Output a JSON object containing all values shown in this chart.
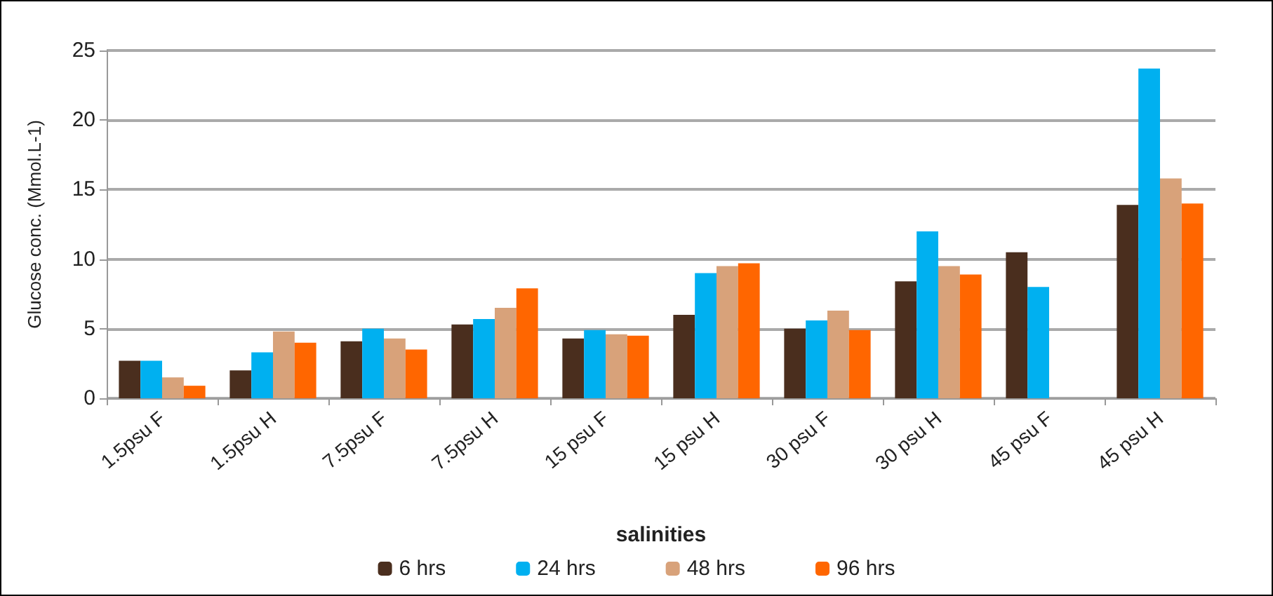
{
  "chart_data": {
    "type": "bar",
    "xlabel": "salinities",
    "ylabel": "Glucose conc. (Mmol.L-1)",
    "categories": [
      "1.5psu F",
      "1.5psu H",
      "7.5psu F",
      "7.5psu H",
      "15 psu F",
      "15 psu H",
      "30 psu F",
      "30 psu H",
      "45 psu F",
      "45 psu H"
    ],
    "series": [
      {
        "name": "6 hrs",
        "color": "#4a2e1e",
        "values": [
          2.7,
          2.0,
          4.1,
          5.3,
          4.3,
          6.0,
          5.0,
          8.4,
          10.5,
          13.9
        ]
      },
      {
        "name": "24 hrs",
        "color": "#00b0f0",
        "values": [
          2.7,
          3.3,
          5.0,
          5.7,
          4.9,
          9.0,
          5.6,
          12.0,
          8.0,
          23.7
        ]
      },
      {
        "name": "48 hrs",
        "color": "#d8a27a",
        "values": [
          1.5,
          4.8,
          4.3,
          6.5,
          4.6,
          9.5,
          6.3,
          9.5,
          0,
          15.8
        ]
      },
      {
        "name": "96 hrs",
        "color": "#ff6600",
        "values": [
          0.9,
          4.0,
          3.5,
          7.9,
          4.5,
          9.7,
          4.9,
          8.9,
          0,
          14.0
        ]
      }
    ],
    "ylim": [
      0,
      25
    ],
    "yticks": [
      0,
      5,
      10,
      15,
      20,
      25
    ],
    "grid": "y",
    "legend": "bottom"
  }
}
